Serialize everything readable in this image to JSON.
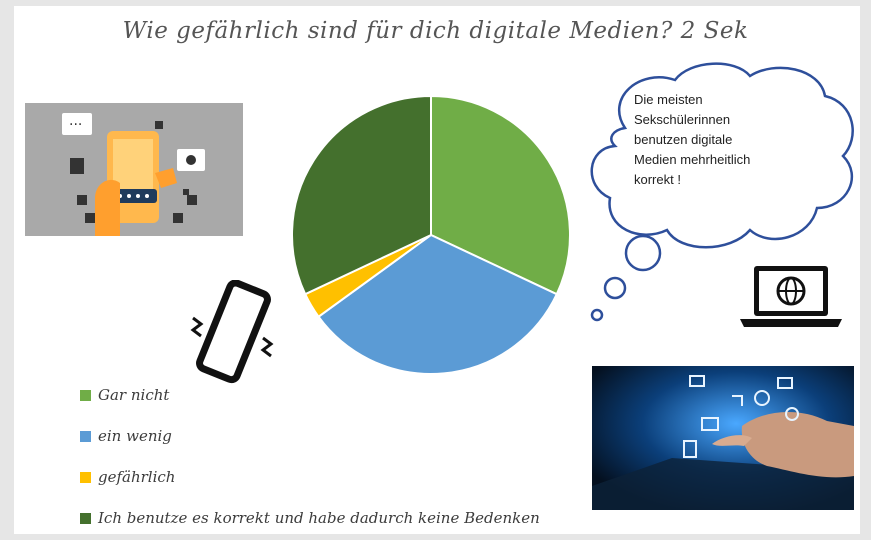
{
  "chart_data": {
    "type": "pie",
    "title": "Wie gefährlich sind für dich digitale Medien? 2 Sek",
    "categories": [
      "Gar nicht",
      "ein wenig",
      "gefährlich",
      "Ich benutze es korrekt und habe dadurch keine Bedenken"
    ],
    "values": [
      32,
      33,
      3,
      32
    ],
    "colors": [
      "#70ad47",
      "#5b9bd5",
      "#ffc000",
      "#44702d"
    ],
    "legend_position": "bottom-left"
  },
  "thought_bubble": {
    "lines": [
      "Die meisten",
      "Sekschülerinnen",
      "benutzen digitale",
      "Medien mehrheitlich",
      "korrekt !"
    ]
  },
  "illustrations": {
    "phone_hand_icon": "smartphone-hand-icon",
    "vibrating_phone_icon": "vibrating-phone-icon",
    "laptop_icon": "laptop-globe-icon",
    "tablet_icon": "touch-tablet-icon"
  }
}
